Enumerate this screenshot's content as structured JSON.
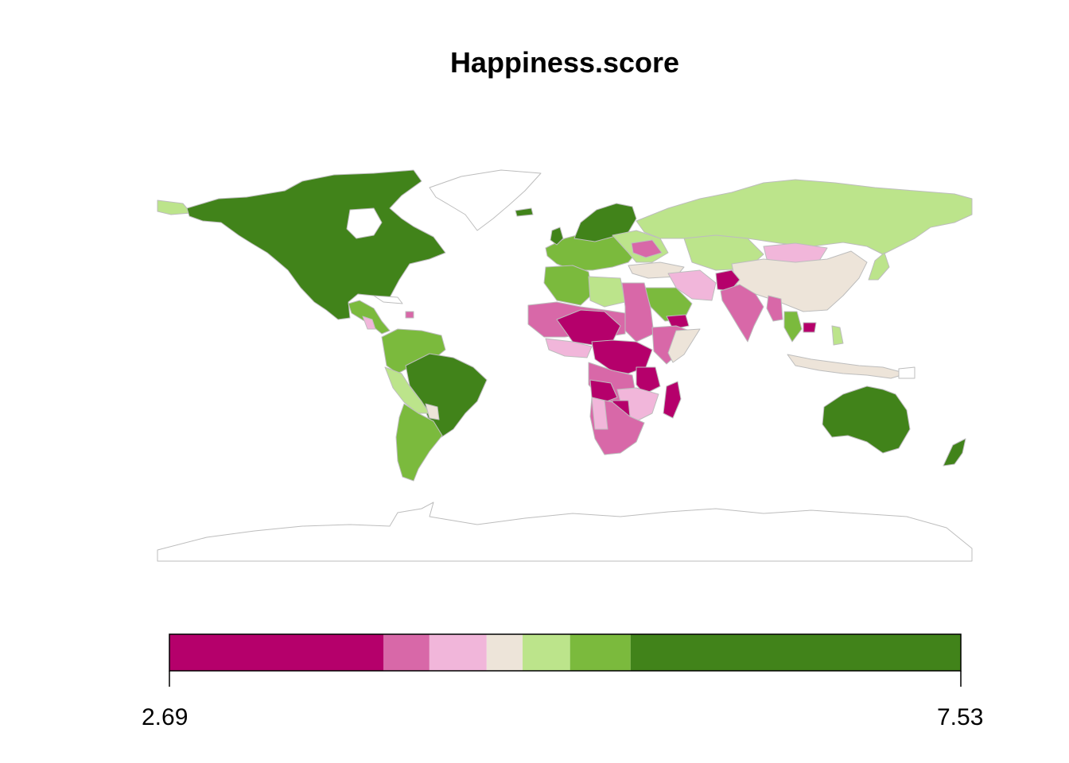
{
  "map": {
    "title": "Happiness.score",
    "variable": "Happiness.score",
    "legend": {
      "min": 2.69,
      "max": 7.53,
      "min_label": "2.69",
      "max_label": "7.53",
      "placement": "bottom",
      "colors": [
        "#b5006b",
        "#d868a8",
        "#f1b6da",
        "#ede4d9",
        "#bce48b",
        "#7bba3d",
        "#41831a"
      ],
      "breaks": [
        2.69,
        4.0,
        4.28,
        4.63,
        4.85,
        5.14,
        5.51,
        7.53
      ]
    },
    "colors": {
      "border": "#bdbdbd",
      "no_data": "#ffffff"
    }
  }
}
